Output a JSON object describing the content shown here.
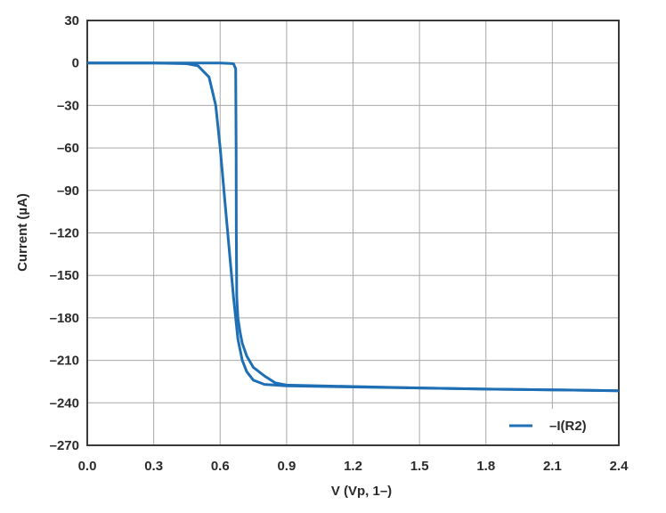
{
  "chart_data": {
    "type": "line",
    "title": "",
    "xlabel": "V (Vp, 1–)",
    "ylabel": "Current (µA)",
    "xlim": [
      0.0,
      2.4
    ],
    "ylim": [
      -270,
      30
    ],
    "x_ticks": [
      "0.0",
      "0.3",
      "0.6",
      "0.9",
      "1.2",
      "1.5",
      "1.8",
      "2.1",
      "2.4"
    ],
    "y_ticks": [
      "30",
      "0",
      "–30",
      "–60",
      "–90",
      "–120",
      "–150",
      "–180",
      "–210",
      "–240",
      "–270"
    ],
    "grid": true,
    "legend_position": "bottom-right",
    "series": [
      {
        "name": "–I(R2)",
        "color": "#1f6fb5",
        "segments": [
          {
            "x": [
              0.0,
              0.3,
              0.45,
              0.5,
              0.55,
              0.58,
              0.6,
              0.62,
              0.64,
              0.66,
              0.68,
              0.7,
              0.72,
              0.75,
              0.8,
              0.85,
              0.9,
              1.2,
              1.5,
              1.8,
              2.1,
              2.4
            ],
            "y": [
              0,
              0,
              -0.5,
              -2,
              -10,
              -30,
              -60,
              -95,
              -130,
              -165,
              -195,
              -210,
              -218,
              -224,
              -227,
              -227.5,
              -228,
              -228.8,
              -229.5,
              -230.3,
              -230.8,
              -231.5
            ]
          },
          {
            "x": [
              0.0,
              0.3,
              0.6,
              0.66,
              0.67,
              0.672,
              0.673,
              0.675,
              0.68,
              0.69,
              0.7,
              0.72,
              0.75,
              0.8,
              0.85,
              0.9,
              1.2,
              1.5,
              1.8,
              2.1,
              2.4
            ],
            "y": [
              0,
              0,
              0,
              -0.5,
              -4,
              -60,
              -120,
              -165,
              -180,
              -190,
              -198,
              -207,
              -215,
              -221,
              -226,
              -227.5,
              -228.5,
              -229.5,
              -230.3,
              -230.8,
              -231.5
            ]
          }
        ]
      }
    ]
  }
}
